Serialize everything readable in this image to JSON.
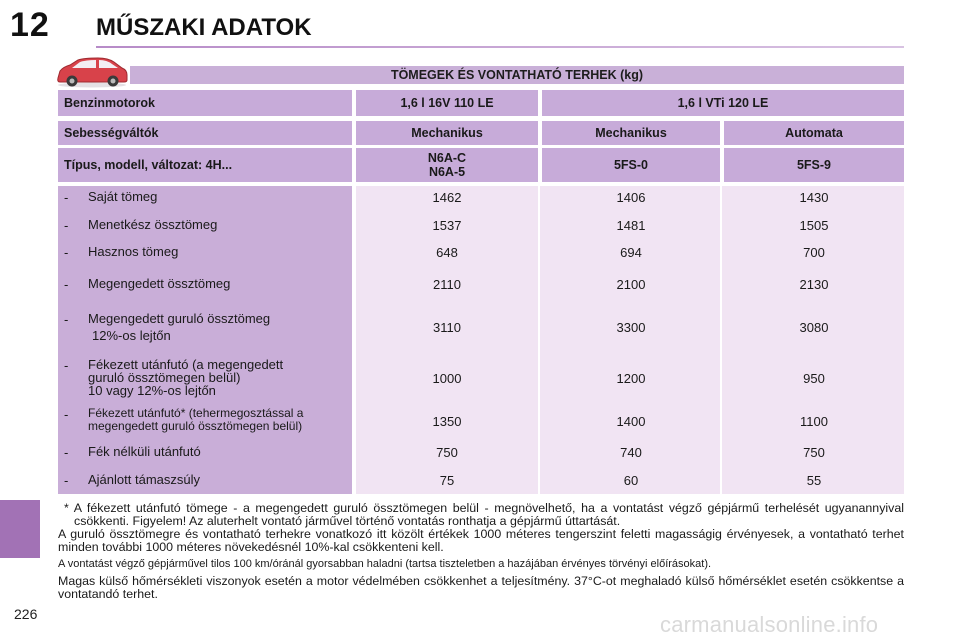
{
  "page": {
    "chapter_number": "12",
    "chapter_title": "MŰSZAKI ADATOK",
    "page_number": "226"
  },
  "section_title": "TÖMEGEK ÉS VONTATHATÓ TERHEK (kg)",
  "header": {
    "engine_label": "Benzinmotorok",
    "engine_1": "1,6 l 16V 110 LE",
    "engine_2": "1,6 l VTi 120 LE",
    "gearbox_label": "Sebességváltók",
    "gearbox_1": "Mechanikus",
    "gearbox_2": "Mechanikus",
    "gearbox_3": "Automata",
    "type_label": "Típus, modell, változat: 4H...",
    "type_1_line1": "N6A-C",
    "type_1_line2": "N6A-5",
    "type_2": "5FS-0",
    "type_3": "5FS-9"
  },
  "rows": [
    {
      "dash": "-",
      "label": "Saját tömeg",
      "v1": "1462",
      "v2": "1406",
      "v3": "1430"
    },
    {
      "dash": "-",
      "label": "Menetkész össztömeg",
      "v1": "1537",
      "v2": "1481",
      "v3": "1505"
    },
    {
      "dash": "-",
      "label": "Hasznos tömeg",
      "v1": "648",
      "v2": "694",
      "v3": "700"
    },
    {
      "dash": "-",
      "label": "Megengedett össztömeg",
      "v1": "2110",
      "v2": "2100",
      "v3": "2130"
    },
    {
      "dash": "-",
      "label_line1": "Megengedett guruló össztömeg",
      "label_line2": "12%-os lejtőn",
      "v1": "3110",
      "v2": "3300",
      "v3": "3080"
    },
    {
      "dash": "-",
      "label_line1": "Fékezett utánfutó (a megengedett",
      "label_line2": "guruló össztömegen belül)",
      "label_line3": "10 vagy 12%-os lejtőn",
      "v1": "1000",
      "v2": "1200",
      "v3": "950"
    },
    {
      "dash": "-",
      "label_line1": "Fékezett utánfutó* (tehermegosztással a",
      "label_line2": "megengedett guruló össztömegen belül)",
      "v1": "1350",
      "v2": "1400",
      "v3": "1100"
    },
    {
      "dash": "-",
      "label": "Fék nélküli utánfutó",
      "v1": "750",
      "v2": "740",
      "v3": "750"
    },
    {
      "dash": "-",
      "label": "Ajánlott támaszsúly",
      "v1": "75",
      "v2": "60",
      "v3": "55"
    }
  ],
  "notes": {
    "footnote": "* A fékezett utánfutó tömege - a megengedett guruló össztömegen belül - megnövelhető, ha a vontatást végző gépjármű terhelését ugyanannyival csökkenti. Figyelem! Az aluterhelt vontató járművel történő vontatás ronthatja a gépjármű úttartását.",
    "para1": "A guruló össztömegre és vontatható terhekre vonatkozó itt közölt értékek 1000 méteres tengerszint feletti magasságig érvényesek, a vontatható terhet minden további 1000 méteres növekedésnél 10%-kal csökkenteni kell.",
    "para2": "A vontatást végző gépjárművel tilos 100 km/óránál gyorsabban haladni (tartsa tiszteletben a hazájában érvényes törvényi előírásokat).",
    "para3": "Magas külső hőmérsékleti viszonyok esetén a motor védelmében csökkenhet a teljesítmény. 37°C-ot meghaladó külső hőmérséklet esetén csökkentse a vontatandó terhet."
  },
  "watermark": "carmanualsonline.info",
  "colors": {
    "accent": "#a272b5",
    "header_bg": "#c7abd9",
    "value_bg": "#f1e4f3",
    "car": "#d8424a"
  }
}
